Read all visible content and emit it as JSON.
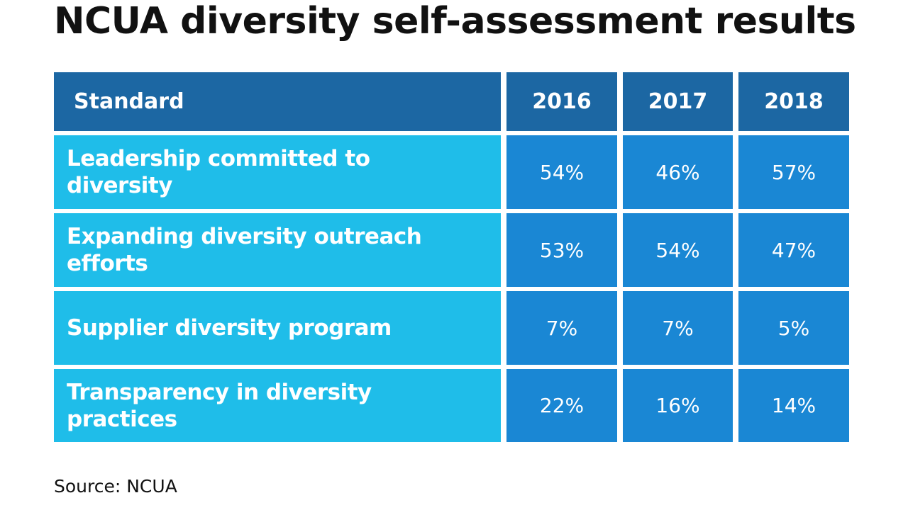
{
  "header": {
    "title": "NCUA diversity self-assessment results"
  },
  "table": {
    "columns": [
      "Standard",
      "2016",
      "2017",
      "2018"
    ],
    "rows": [
      [
        "Leadership committed to diversity",
        "54%",
        "46%",
        "57%"
      ],
      [
        "Expanding diversity outreach efforts",
        "53%",
        "54%",
        "47%"
      ],
      [
        "Supplier diversity program",
        "7%",
        "7%",
        "5%"
      ],
      [
        "Transparency in diversity practices",
        "22%",
        "16%",
        "14%"
      ]
    ]
  },
  "footer": {
    "source": "Source: NCUA"
  }
}
